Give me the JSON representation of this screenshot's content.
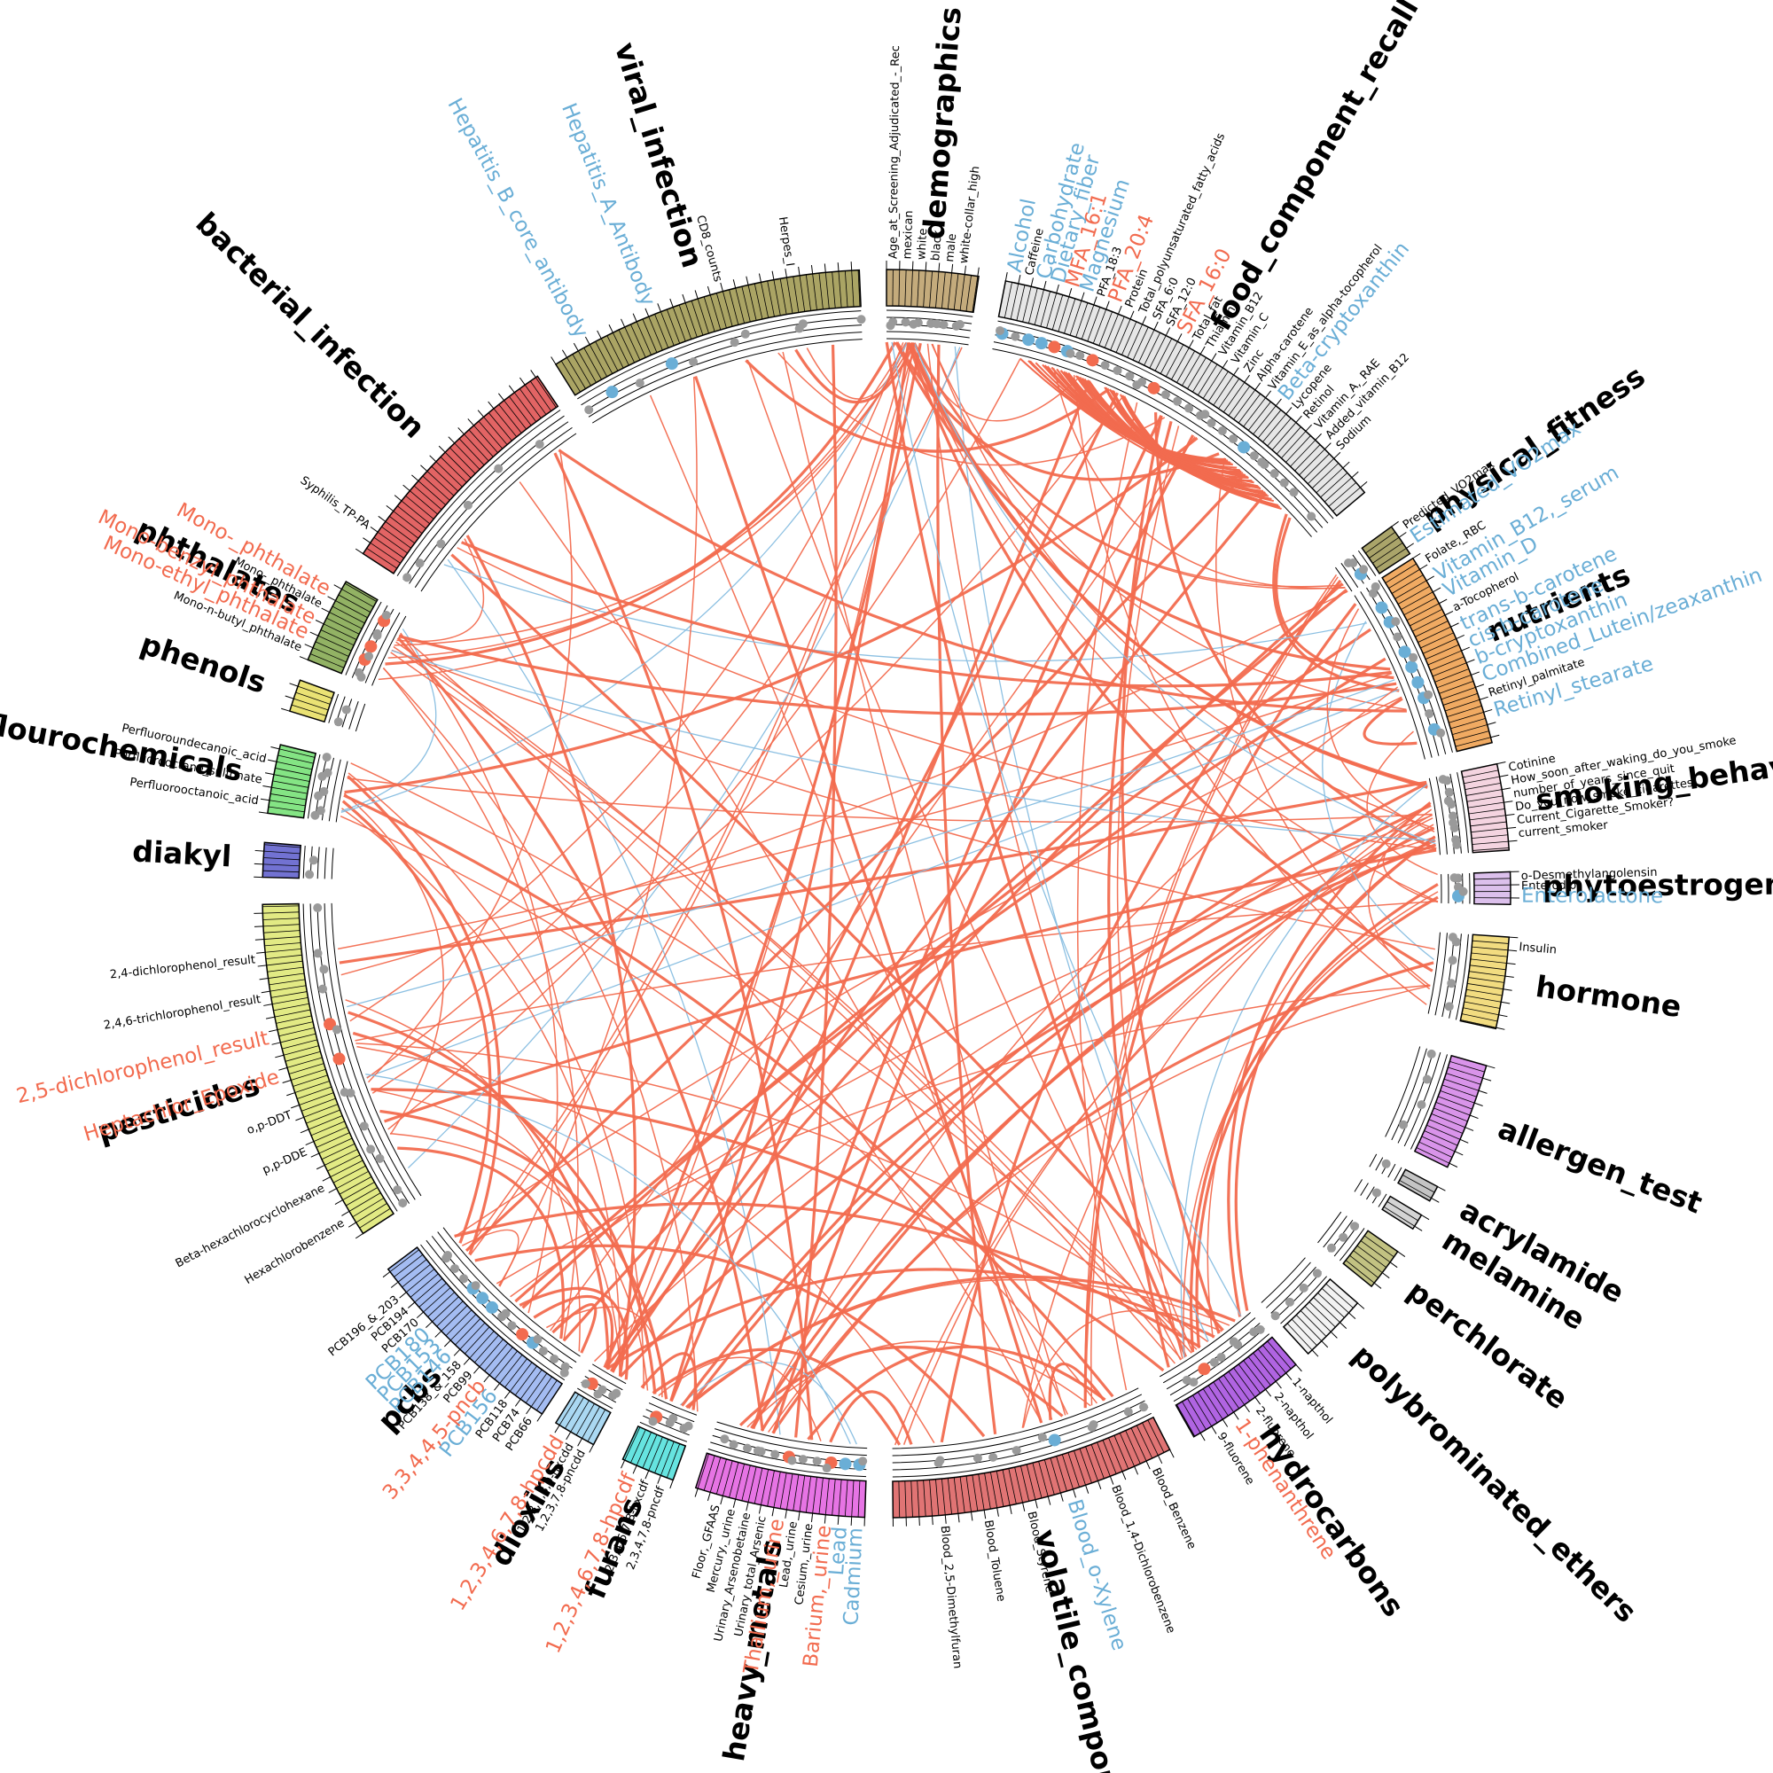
{
  "groups": [
    {
      "name": "demographics",
      "color": "#c4ab7c",
      "items": [
        {
          "label": "Age_at_Screening_Adjudicated_-_Rec"
        },
        {
          "label": "mexican"
        },
        {
          "label": "white"
        },
        {
          "label": "black"
        },
        {
          "label": "male"
        },
        {
          "label": "white-collar_high"
        }
      ]
    },
    {
      "name": "food_component_recall",
      "color": "#e6e6e6",
      "items": [
        {
          "label": "Alcohol",
          "color": "#6aaed6"
        },
        {
          "label": "Caffeine"
        },
        {
          "label": "Carbohydrate",
          "color": "#6aaed6"
        },
        {
          "label": "Dietary_fiber",
          "color": "#6aaed6"
        },
        {
          "label": "MFA_16:1",
          "color": "#f26b4f"
        },
        {
          "label": "Magnesium",
          "color": "#6aaed6"
        },
        {
          "label": "PFA_18:3"
        },
        {
          "label": "PFA_20:4",
          "color": "#f26b4f"
        },
        {
          "label": "Protein"
        },
        {
          "label": "Total_polyunsaturated_fatty_acids"
        },
        {
          "label": "SFA_6:0"
        },
        {
          "label": "SFA_12:0"
        },
        {
          "label": "SFA_16:0",
          "color": "#f26b4f"
        },
        {
          "label": "Total_fat"
        },
        {
          "label": "Thiamin"
        },
        {
          "label": "Vitamin_B12"
        },
        {
          "label": "Vitamin_C"
        },
        {
          "label": "Zinc"
        },
        {
          "label": "Alpha-carotene"
        },
        {
          "label": "Vitamin_E_as_alpha-tocopherol"
        },
        {
          "label": "Beta-cryptoxanthin",
          "color": "#6aaed6"
        },
        {
          "label": "Lycopene"
        },
        {
          "label": "Retinol"
        },
        {
          "label": "Vitamin_A,_RAE"
        },
        {
          "label": "Added_vitamin_B12"
        },
        {
          "label": "Sodium"
        }
      ]
    },
    {
      "name": "physical_fitness",
      "color": "#aaa46a",
      "items": [
        {
          "label": "Predicted_VO2max"
        },
        {
          "label": "Estimated_VO2max",
          "color": "#6aaed6"
        }
      ]
    },
    {
      "name": "nutrients",
      "color": "#f0aa62",
      "items": [
        {
          "label": "Folate,_RBC"
        },
        {
          "label": "Vitamin_B12,_serum",
          "color": "#6aaed6"
        },
        {
          "label": "Vitamin_D",
          "color": "#6aaed6"
        },
        {
          "label": "a-Tocopherol"
        },
        {
          "label": "trans-b-carotene",
          "color": "#6aaed6"
        },
        {
          "label": "cis-b-carotene",
          "color": "#6aaed6"
        },
        {
          "label": "b-cryptoxanthin",
          "color": "#6aaed6"
        },
        {
          "label": "Combined_Lutein/zeaxanthin",
          "color": "#6aaed6"
        },
        {
          "label": "Retinyl_palmitate"
        },
        {
          "label": "Retinyl_stearate",
          "color": "#6aaed6"
        }
      ]
    },
    {
      "name": "smoking_behavior",
      "color": "#f4d4e0",
      "items": [
        {
          "label": "Cotinine"
        },
        {
          "label": "How_soon_after_waking_do_you_smoke"
        },
        {
          "label": "number_of_years_since_quit"
        },
        {
          "label": "Do_you_now_smoke_cigarettes..."
        },
        {
          "label": "Current_Cigarette_Smoker?"
        },
        {
          "label": "current_smoker"
        }
      ]
    },
    {
      "name": "phytoestrogens",
      "color": "#dcc0ec",
      "items": [
        {
          "label": "o-Desmethylangolensin"
        },
        {
          "label": "Enterodiol"
        },
        {
          "label": "Enterolactone",
          "color": "#6aaed6"
        }
      ]
    },
    {
      "name": "hormone",
      "color": "#f2dc80",
      "items": [
        {
          "label": "Insulin"
        }
      ]
    },
    {
      "name": "allergen_test",
      "color": "#d994ea",
      "items": []
    },
    {
      "name": "acrylamide",
      "color": "#c4c4c4",
      "items": []
    },
    {
      "name": "melamine",
      "color": "#d4d4d4",
      "items": []
    },
    {
      "name": "perchlorate",
      "color": "#c2c282",
      "items": []
    },
    {
      "name": "polybrominated_ethers",
      "color": "#f2f2f2",
      "items": []
    },
    {
      "name": "hydrocarbons",
      "color": "#b064e2",
      "items": [
        {
          "label": "1-napthol"
        },
        {
          "label": "2-napthol"
        },
        {
          "label": "2-fluorene"
        },
        {
          "label": "1-phenanthrene",
          "color": "#f26b4f"
        },
        {
          "label": "9-fluorene"
        }
      ]
    },
    {
      "name": "volatile_compounds",
      "color": "#e07474",
      "items": [
        {
          "label": "Blood_Benzene"
        },
        {
          "label": "Blood_1,4-Dichlorobenzene"
        },
        {
          "label": "Blood_o-Xylene",
          "color": "#6aaed6"
        },
        {
          "label": "Blood_Styrene"
        },
        {
          "label": "Blood_Toluene"
        },
        {
          "label": "Blood_2,5-Dimethylfuran"
        }
      ]
    },
    {
      "name": "heavy_metals",
      "color": "#e674e4",
      "items": [
        {
          "label": "Cadmium",
          "color": "#6aaed6"
        },
        {
          "label": "Lead",
          "color": "#6aaed6"
        },
        {
          "label": "Barium,_urine",
          "color": "#f26b4f"
        },
        {
          "label": "Cesium,_urine"
        },
        {
          "label": "Lead,_urine"
        },
        {
          "label": "Thallium,_urine",
          "color": "#f26b4f"
        },
        {
          "label": "Urinary_total_Arsenic"
        },
        {
          "label": "Urinary_Arsenobetaine"
        },
        {
          "label": "Mercury,_urine"
        },
        {
          "label": "Floor,_GFAAS"
        }
      ]
    },
    {
      "name": "furans",
      "color": "#66e4e0",
      "items": [
        {
          "label": "2,3,4,7,8-pncdf"
        },
        {
          "label": "2,3,4,6,7,8-hxcdf"
        },
        {
          "label": "1,2,3,4,6,7,8-hpcdf",
          "color": "#f26b4f"
        }
      ]
    },
    {
      "name": "dioxins",
      "color": "#aad8f2",
      "items": [
        {
          "label": "1,2,3,7,8-pncdd"
        },
        {
          "label": "1,2,3,7,8,9-hxcdd"
        },
        {
          "label": "1,2,3,4,6,7,8-hpcdd",
          "color": "#f26b4f"
        }
      ]
    },
    {
      "name": "pcbs",
      "color": "#a4bcf2",
      "items": [
        {
          "label": "PCB66"
        },
        {
          "label": "PCB74"
        },
        {
          "label": "PCB118"
        },
        {
          "label": "PCB156",
          "color": "#6aaed6"
        },
        {
          "label": "3,3,4,4,5-pncb",
          "color": "#f26b4f"
        },
        {
          "label": "PCB99"
        },
        {
          "label": "PCB138_&_158"
        },
        {
          "label": "PCB146",
          "color": "#6aaed6"
        },
        {
          "label": "PCB153",
          "color": "#6aaed6"
        },
        {
          "label": "PCB180",
          "color": "#6aaed6"
        },
        {
          "label": "PCB170"
        },
        {
          "label": "PCB194"
        },
        {
          "label": "PCB196_&_203"
        }
      ]
    },
    {
      "name": "pesticides",
      "color": "#e2ea84",
      "items": [
        {
          "label": "Hexachlorobenzene"
        },
        {
          "label": "Beta-hexachlorocyclohexane"
        },
        {
          "label": "p,p-DDE"
        },
        {
          "label": "o,p-DDT"
        },
        {
          "label": "Heptachlor_Epoxide",
          "color": "#f26b4f"
        },
        {
          "label": "2,5-dichlorophenol_result",
          "color": "#f26b4f"
        },
        {
          "label": "2,4,6-trichlorophenol_result"
        },
        {
          "label": "2,4-dichlorophenol_result"
        }
      ]
    },
    {
      "name": "diakyl",
      "color": "#7272d2",
      "items": []
    },
    {
      "name": "polyflourochemicals",
      "color": "#84e484",
      "items": [
        {
          "label": "Perfluorooctanoic_acid"
        },
        {
          "label": "Perfluorooctane_sulfonate"
        },
        {
          "label": "Perfluoroundecanoic_acid"
        }
      ]
    },
    {
      "name": "phenols",
      "color": "#eae274",
      "items": []
    },
    {
      "name": "phthalates",
      "color": "#92b264",
      "items": [
        {
          "label": "Mono-n-butyl_phthalate"
        },
        {
          "label": "Mono-ethyl_phthalate",
          "color": "#f26b4f"
        },
        {
          "label": "Mono-benzyl_phthalate",
          "color": "#f26b4f"
        },
        {
          "label": "Mono-_phthalate"
        },
        {
          "label": "Mono-_phthalate",
          "color": "#f26b4f"
        }
      ]
    },
    {
      "name": "bacterial_infection",
      "color": "#e26464",
      "items": [
        {
          "label": "Syphilis_TP-PA"
        }
      ]
    },
    {
      "name": "viral_infection",
      "color": "#aaa464",
      "items": [
        {
          "label": "Hepatitis_B_core_antibody",
          "color": "#6aaed6"
        },
        {
          "label": "Hepatitis_A_Antibody",
          "color": "#6aaed6"
        },
        {
          "label": "CD8_counts"
        },
        {
          "label": "Herpes_I"
        }
      ]
    }
  ]
}
